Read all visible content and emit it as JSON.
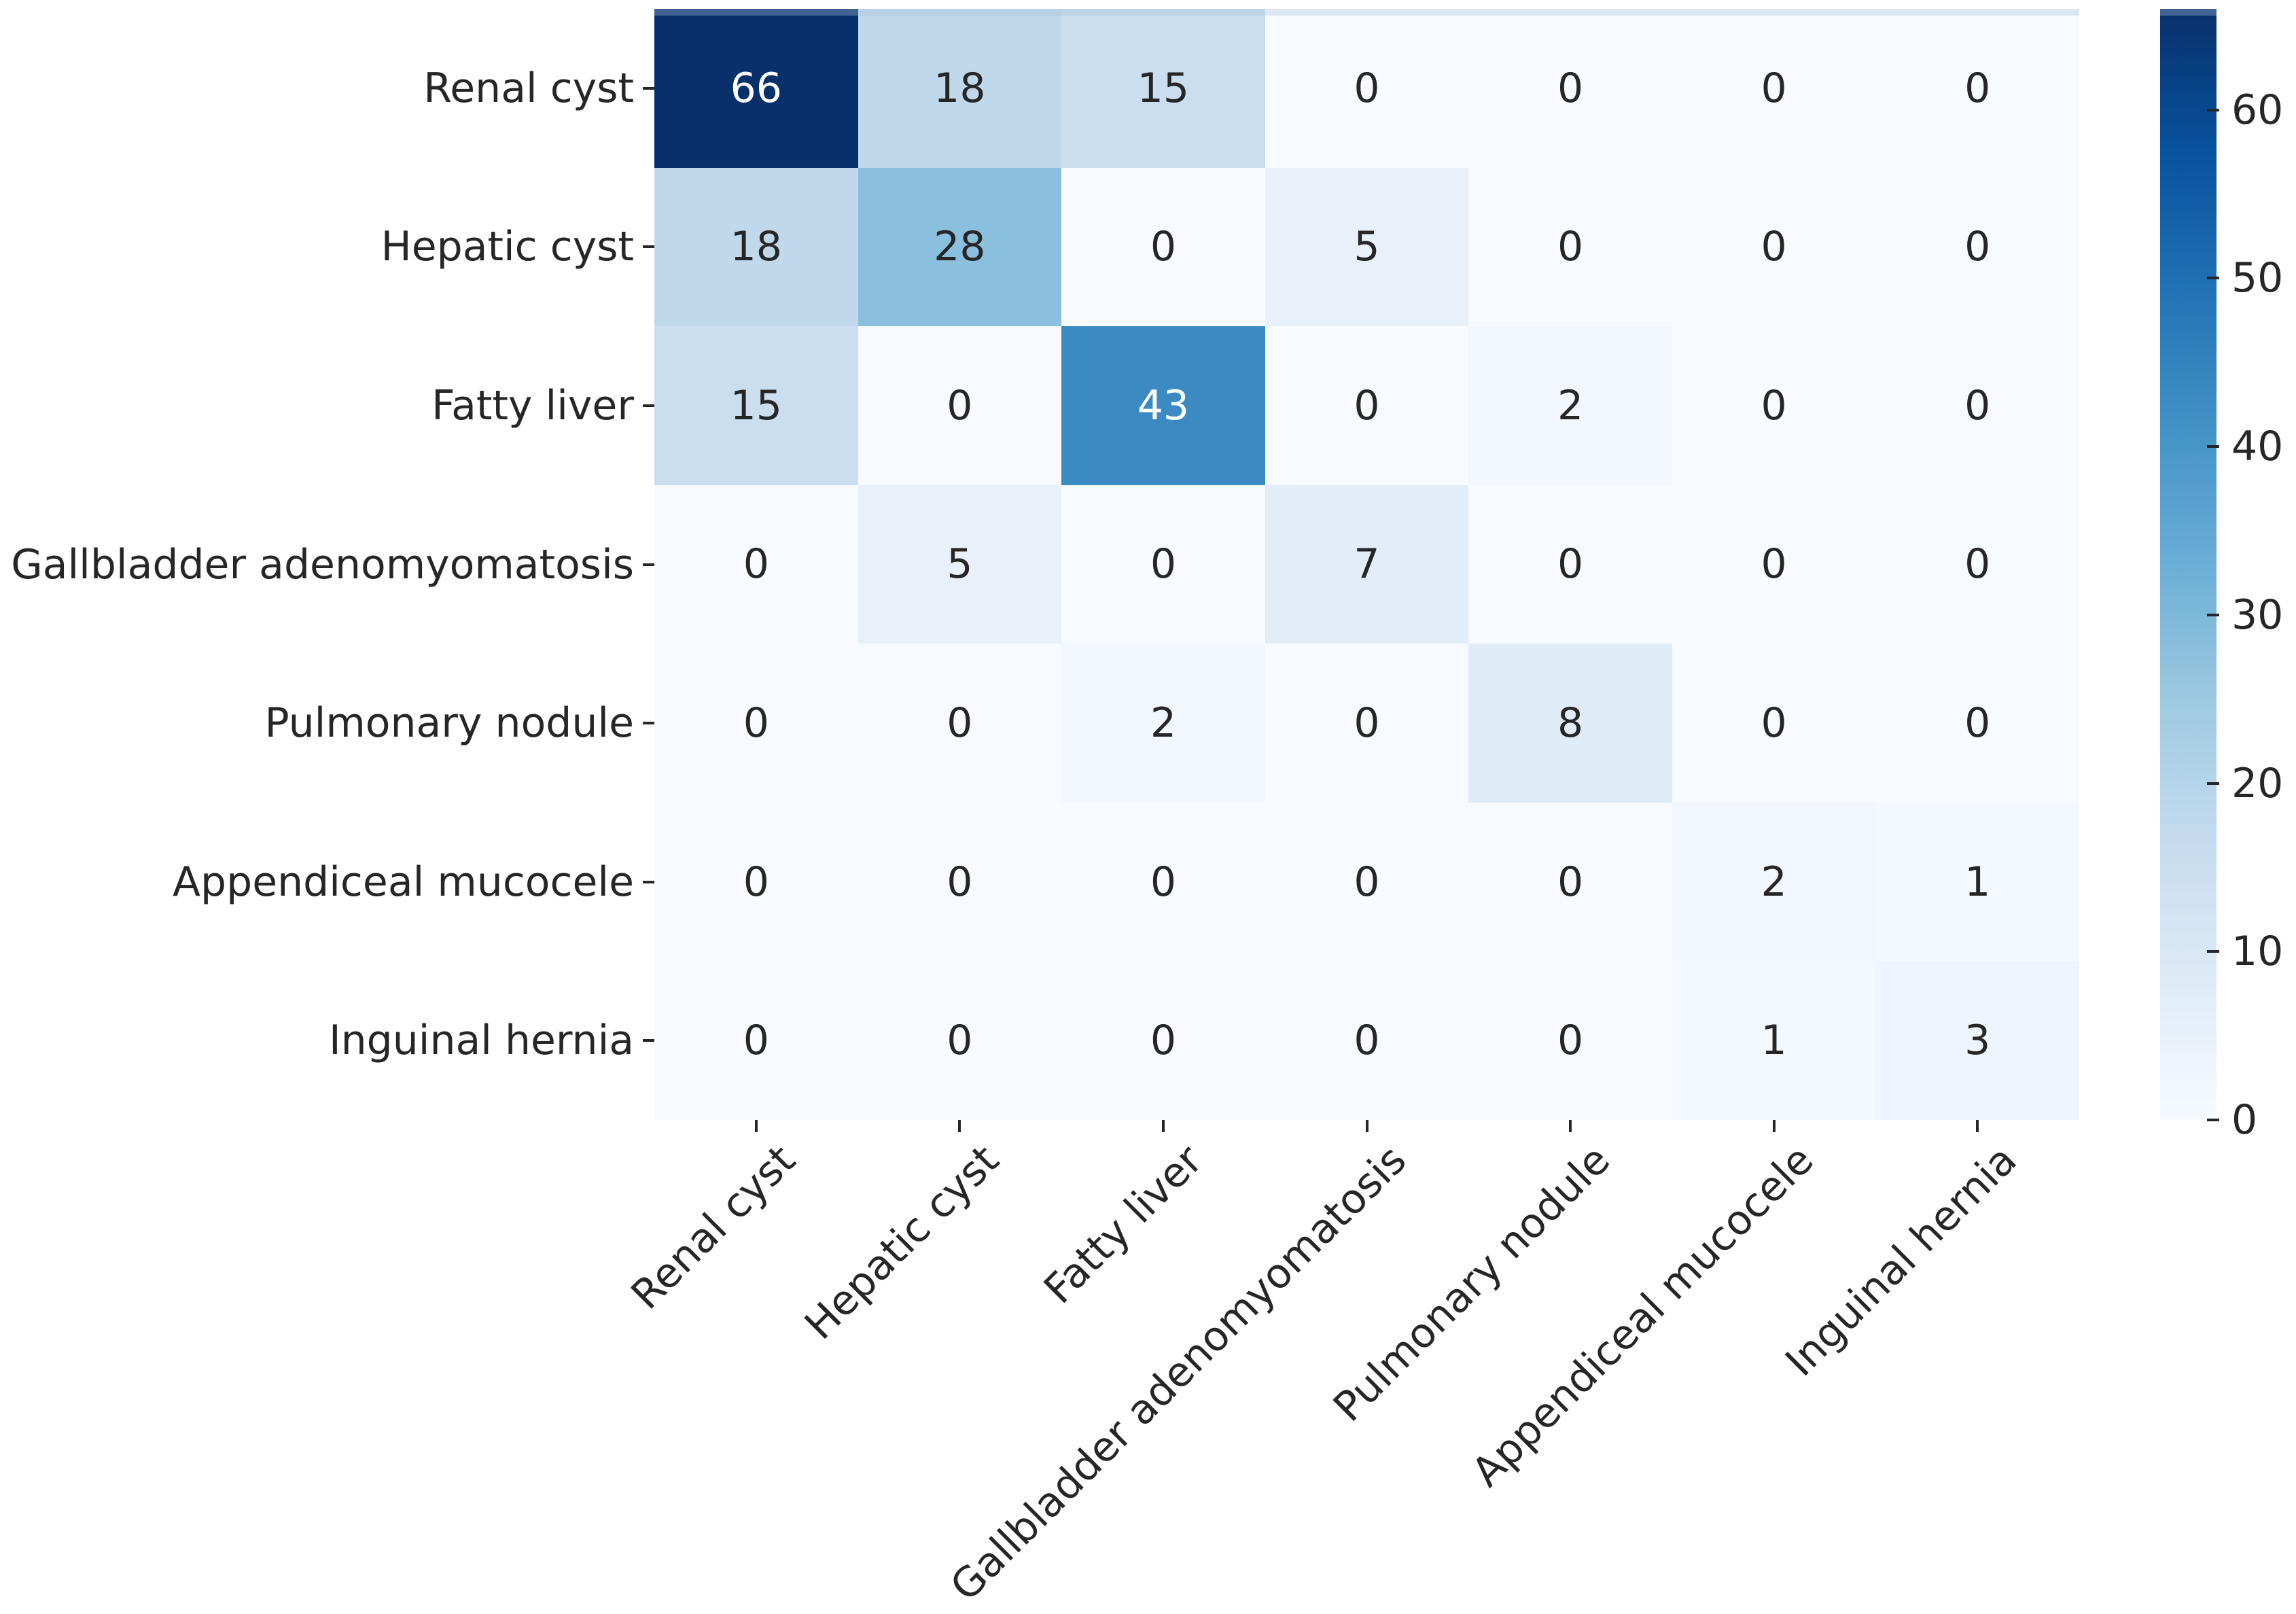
{
  "chart_data": {
    "type": "heatmap",
    "title": "",
    "xlabel": "",
    "ylabel": "",
    "row_labels": [
      "Renal cyst",
      "Hepatic cyst",
      "Fatty liver",
      "Gallbladder adenomyomatosis",
      "Pulmonary nodule",
      "Appendiceal mucocele",
      "Inguinal hernia"
    ],
    "col_labels": [
      "Renal cyst",
      "Hepatic cyst",
      "Fatty liver",
      "Gallbladder adenomyomatosis",
      "Pulmonary nodule",
      "Appendiceal mucocele",
      "Inguinal hernia"
    ],
    "matrix": [
      [
        66,
        18,
        15,
        0,
        0,
        0,
        0
      ],
      [
        18,
        28,
        0,
        5,
        0,
        0,
        0
      ],
      [
        15,
        0,
        43,
        0,
        2,
        0,
        0
      ],
      [
        0,
        5,
        0,
        7,
        0,
        0,
        0
      ],
      [
        0,
        0,
        2,
        0,
        8,
        0,
        0
      ],
      [
        0,
        0,
        0,
        0,
        0,
        2,
        1
      ],
      [
        0,
        0,
        0,
        0,
        0,
        1,
        3
      ]
    ],
    "annotated": true,
    "vmin": 0,
    "vmax": 66,
    "colorbar_ticks": [
      0,
      10,
      20,
      30,
      40,
      50,
      60
    ],
    "colormap": "Blues",
    "legend_position": "right-colorbar",
    "grid": false,
    "x_tick_rotation_deg": 45
  },
  "colors": {
    "background": "#ffffff",
    "tick_and_label_text": "#262626",
    "annotation_text_dark": "#262626",
    "annotation_text_light": "#ffffff",
    "blues_anchors": [
      "#f7fbff",
      "#deebf7",
      "#c6dbef",
      "#9ecae1",
      "#6baed6",
      "#4292c6",
      "#2171b5",
      "#08519c",
      "#08306b"
    ]
  }
}
